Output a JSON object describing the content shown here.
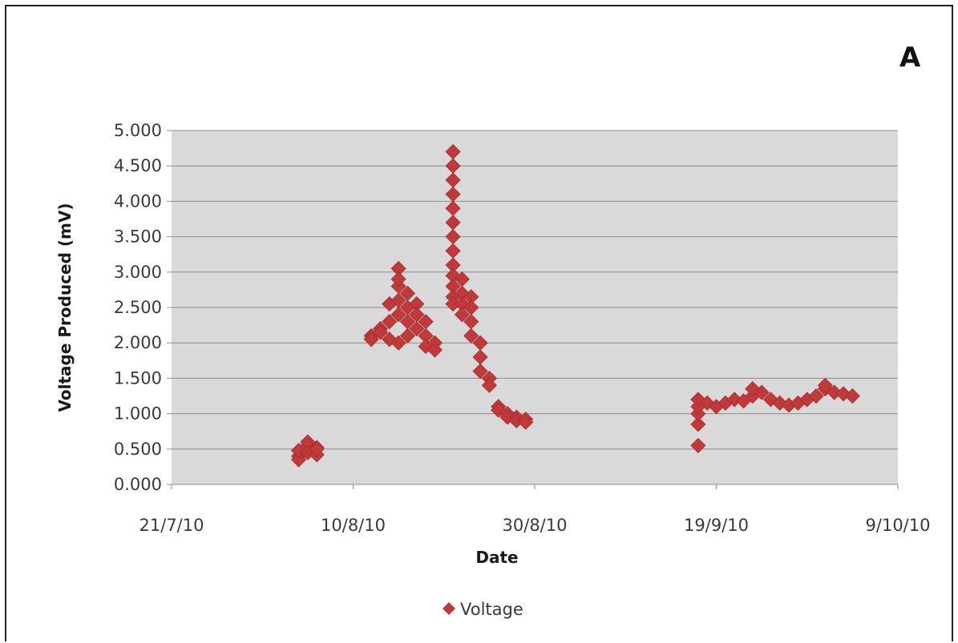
{
  "panel_label": "A",
  "chart_data": {
    "type": "scatter",
    "title": "",
    "xlabel": "Date",
    "ylabel": "Voltage Produced (mV)",
    "x_ticks": [
      "21/7/10",
      "10/8/10",
      "30/8/10",
      "19/9/10",
      "9/10/10"
    ],
    "x_range": [
      "2010-07-21",
      "2010-10-09"
    ],
    "y_ticks": [
      "0.000",
      "0.500",
      "1.000",
      "1.500",
      "2.000",
      "2.500",
      "3.000",
      "3.500",
      "4.000",
      "4.500",
      "5.000"
    ],
    "ylim": [
      0,
      5
    ],
    "grid": true,
    "legend_position": "bottom",
    "marker": "diamond",
    "series": [
      {
        "name": "Voltage",
        "color": "#c0393b",
        "points": [
          [
            "2010-08-04",
            0.4
          ],
          [
            "2010-08-04",
            0.35
          ],
          [
            "2010-08-04",
            0.48
          ],
          [
            "2010-08-05",
            0.55
          ],
          [
            "2010-08-05",
            0.6
          ],
          [
            "2010-08-05",
            0.45
          ],
          [
            "2010-08-06",
            0.52
          ],
          [
            "2010-08-06",
            0.42
          ],
          [
            "2010-08-06",
            0.5
          ],
          [
            "2010-08-12",
            2.1
          ],
          [
            "2010-08-12",
            2.05
          ],
          [
            "2010-08-13",
            2.2
          ],
          [
            "2010-08-13",
            2.15
          ],
          [
            "2010-08-14",
            2.3
          ],
          [
            "2010-08-14",
            2.05
          ],
          [
            "2010-08-14",
            2.55
          ],
          [
            "2010-08-15",
            2.8
          ],
          [
            "2010-08-15",
            3.05
          ],
          [
            "2010-08-15",
            2.9
          ],
          [
            "2010-08-15",
            2.6
          ],
          [
            "2010-08-15",
            2.4
          ],
          [
            "2010-08-15",
            2.0
          ],
          [
            "2010-08-16",
            2.7
          ],
          [
            "2010-08-16",
            2.5
          ],
          [
            "2010-08-16",
            2.3
          ],
          [
            "2010-08-16",
            2.1
          ],
          [
            "2010-08-17",
            2.55
          ],
          [
            "2010-08-17",
            2.4
          ],
          [
            "2010-08-17",
            2.2
          ],
          [
            "2010-08-18",
            2.3
          ],
          [
            "2010-08-18",
            2.1
          ],
          [
            "2010-08-18",
            1.95
          ],
          [
            "2010-08-19",
            2.0
          ],
          [
            "2010-08-19",
            1.9
          ],
          [
            "2010-08-21",
            4.7
          ],
          [
            "2010-08-21",
            4.5
          ],
          [
            "2010-08-21",
            4.3
          ],
          [
            "2010-08-21",
            4.1
          ],
          [
            "2010-08-21",
            3.9
          ],
          [
            "2010-08-21",
            3.7
          ],
          [
            "2010-08-21",
            3.5
          ],
          [
            "2010-08-21",
            3.3
          ],
          [
            "2010-08-21",
            3.1
          ],
          [
            "2010-08-21",
            2.95
          ],
          [
            "2010-08-21",
            2.8
          ],
          [
            "2010-08-21",
            2.65
          ],
          [
            "2010-08-21",
            2.55
          ],
          [
            "2010-08-22",
            2.9
          ],
          [
            "2010-08-22",
            2.7
          ],
          [
            "2010-08-22",
            2.55
          ],
          [
            "2010-08-22",
            2.4
          ],
          [
            "2010-08-23",
            2.65
          ],
          [
            "2010-08-23",
            2.5
          ],
          [
            "2010-08-23",
            2.3
          ],
          [
            "2010-08-23",
            2.1
          ],
          [
            "2010-08-24",
            2.0
          ],
          [
            "2010-08-24",
            1.8
          ],
          [
            "2010-08-24",
            1.6
          ],
          [
            "2010-08-25",
            1.5
          ],
          [
            "2010-08-25",
            1.4
          ],
          [
            "2010-08-26",
            1.1
          ],
          [
            "2010-08-26",
            1.05
          ],
          [
            "2010-08-27",
            1.0
          ],
          [
            "2010-08-27",
            0.95
          ],
          [
            "2010-08-28",
            0.95
          ],
          [
            "2010-08-28",
            0.9
          ],
          [
            "2010-08-29",
            0.92
          ],
          [
            "2010-08-29",
            0.88
          ],
          [
            "2010-09-17",
            0.55
          ],
          [
            "2010-09-17",
            0.85
          ],
          [
            "2010-09-17",
            1.0
          ],
          [
            "2010-09-17",
            1.1
          ],
          [
            "2010-09-17",
            1.2
          ],
          [
            "2010-09-18",
            1.15
          ],
          [
            "2010-09-19",
            1.1
          ],
          [
            "2010-09-20",
            1.15
          ],
          [
            "2010-09-21",
            1.2
          ],
          [
            "2010-09-22",
            1.18
          ],
          [
            "2010-09-23",
            1.25
          ],
          [
            "2010-09-23",
            1.35
          ],
          [
            "2010-09-24",
            1.3
          ],
          [
            "2010-09-25",
            1.2
          ],
          [
            "2010-09-26",
            1.15
          ],
          [
            "2010-09-27",
            1.12
          ],
          [
            "2010-09-28",
            1.15
          ],
          [
            "2010-09-29",
            1.2
          ],
          [
            "2010-09-30",
            1.25
          ],
          [
            "2010-10-01",
            1.35
          ],
          [
            "2010-10-01",
            1.4
          ],
          [
            "2010-10-02",
            1.3
          ],
          [
            "2010-10-03",
            1.28
          ],
          [
            "2010-10-04",
            1.25
          ]
        ]
      }
    ]
  }
}
